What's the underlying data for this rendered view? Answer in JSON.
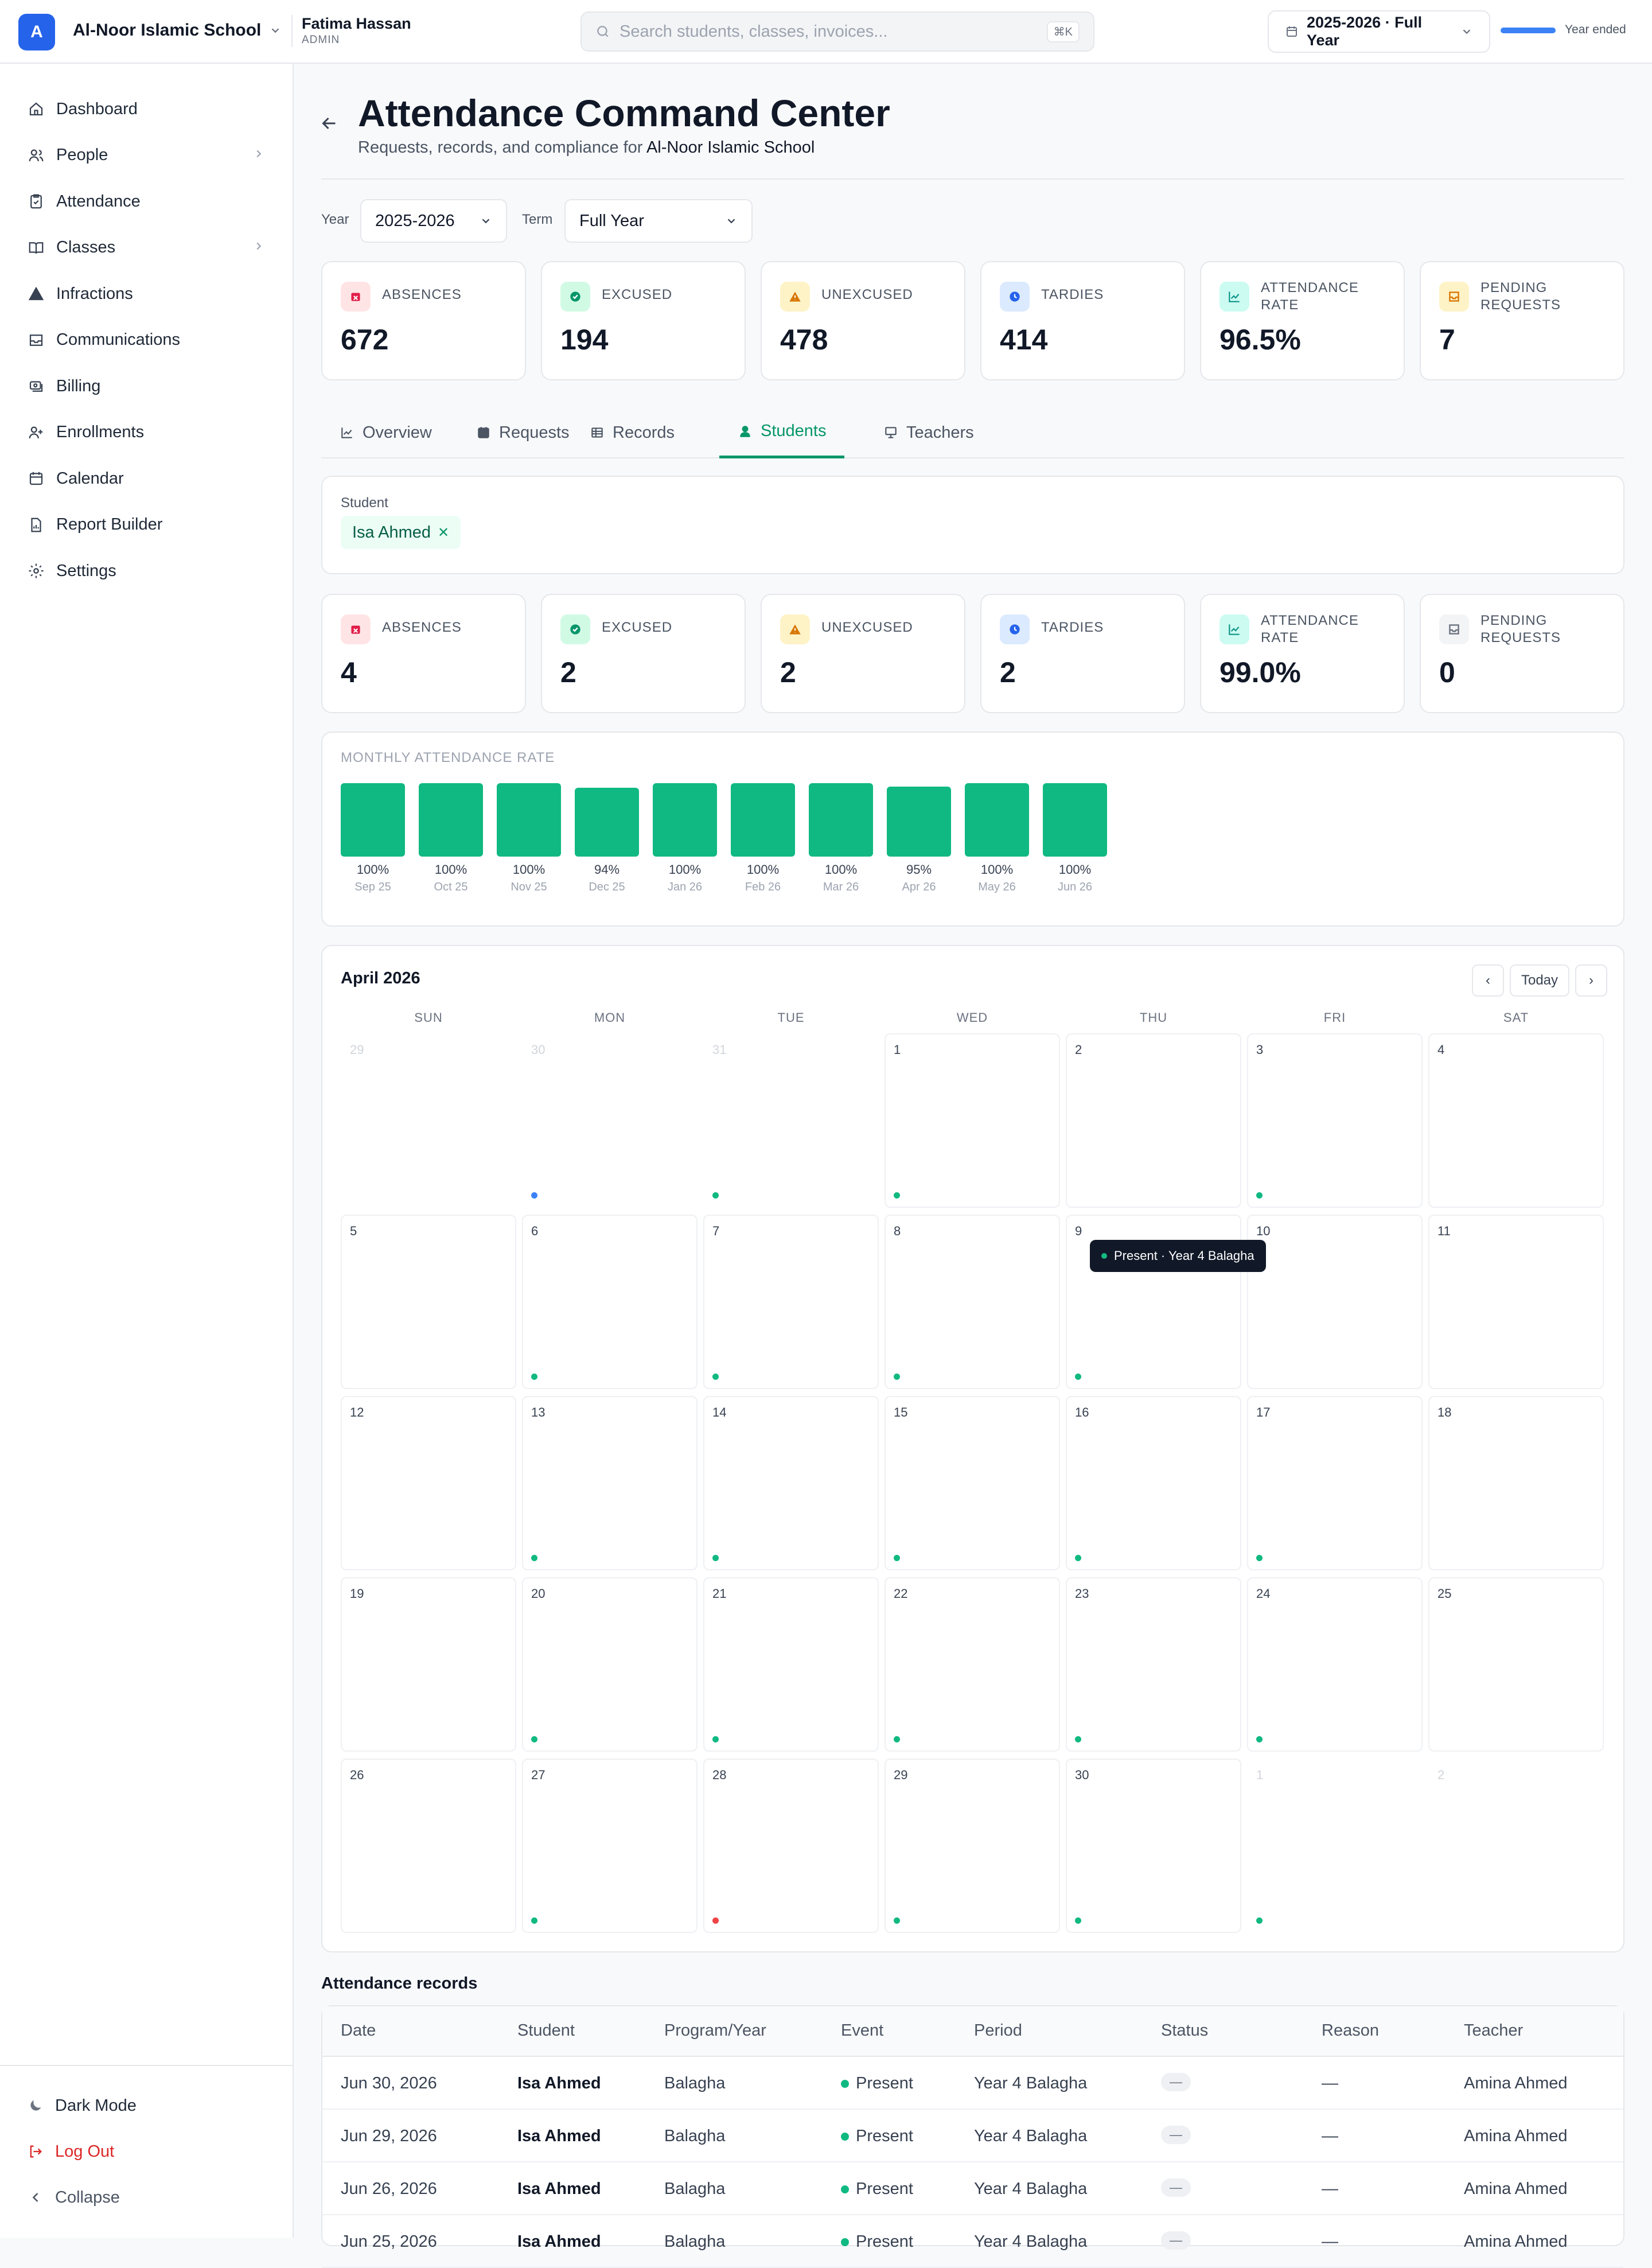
{
  "topbar": {
    "logo_letter": "A",
    "school_name": "Al-Noor Islamic School",
    "user_name": "Fatima Hassan",
    "user_role": "ADMIN",
    "search_placeholder": "Search students, classes, invoices...",
    "search_shortcut": "⌘K",
    "year_selector": "2025-2026 · Full Year",
    "year_status": "Year ended",
    "year_progress_percent": 100
  },
  "sidebar": {
    "items": [
      {
        "label": "Dashboard",
        "icon": "home-icon"
      },
      {
        "label": "People",
        "icon": "users-icon",
        "has_submenu": true
      },
      {
        "label": "Attendance",
        "icon": "clipboard-check-icon"
      },
      {
        "label": "Classes",
        "icon": "book-open-icon",
        "has_submenu": true
      },
      {
        "label": "Infractions",
        "icon": "alert-triangle-icon"
      },
      {
        "label": "Communications",
        "icon": "inbox-icon"
      },
      {
        "label": "Billing",
        "icon": "banknote-icon"
      },
      {
        "label": "Enrollments",
        "icon": "user-plus-icon"
      },
      {
        "label": "Calendar",
        "icon": "calendar-icon"
      },
      {
        "label": "Report Builder",
        "icon": "file-chart-icon"
      },
      {
        "label": "Settings",
        "icon": "gear-icon"
      }
    ],
    "footer": {
      "dark_mode": "Dark Mode",
      "logout": "Log Out",
      "collapse": "Collapse"
    }
  },
  "page": {
    "title": "Attendance Command Center",
    "subtitle_prefix": "Requests, records, and compliance for",
    "subtitle_school": "Al-Noor Islamic School",
    "filters": {
      "year_label": "Year",
      "year_value": "2025-2026",
      "term_label": "Term",
      "term_value": "Full Year"
    }
  },
  "overall_stats": [
    {
      "label": "ABSENCES",
      "value": "672",
      "icon": "calendar-x-icon",
      "color": "#e11d48",
      "bg": "#ffe4e6"
    },
    {
      "label": "EXCUSED",
      "value": "194",
      "icon": "check-circle-icon",
      "color": "#059669",
      "bg": "#d1fae5"
    },
    {
      "label": "UNEXCUSED",
      "value": "478",
      "icon": "warning-icon",
      "color": "#d97706",
      "bg": "#fef3c7"
    },
    {
      "label": "TARDIES",
      "value": "414",
      "icon": "clock-icon",
      "color": "#2563eb",
      "bg": "#dbeafe"
    },
    {
      "label": "ATTENDANCE RATE",
      "value": "96.5%",
      "icon": "trending-icon",
      "color": "#0d9488",
      "bg": "#ccfbf1"
    },
    {
      "label": "PENDING REQUESTS",
      "value": "7",
      "icon": "inbox-icon",
      "color": "#d97706",
      "bg": "#fef3c7"
    }
  ],
  "tabs": [
    {
      "label": "Overview",
      "icon": "line-chart-icon",
      "active": false
    },
    {
      "label": "Requests",
      "icon": "calendar-icon",
      "active": false
    },
    {
      "label": "Records",
      "icon": "table-icon",
      "active": false
    },
    {
      "label": "Students",
      "icon": "student-icon",
      "active": true
    },
    {
      "label": "Teachers",
      "icon": "presentation-icon",
      "active": false
    }
  ],
  "student_filter": {
    "label": "Student",
    "selected": "Isa Ahmed",
    "remove_glyph": "✕"
  },
  "student_stats": [
    {
      "label": "ABSENCES",
      "value": "4",
      "icon": "calendar-x-icon",
      "color": "#e11d48",
      "bg": "#ffe4e6"
    },
    {
      "label": "EXCUSED",
      "value": "2",
      "icon": "check-circle-icon",
      "color": "#059669",
      "bg": "#d1fae5"
    },
    {
      "label": "UNEXCUSED",
      "value": "2",
      "icon": "warning-icon",
      "color": "#d97706",
      "bg": "#fef3c7"
    },
    {
      "label": "TARDIES",
      "value": "2",
      "icon": "clock-icon",
      "color": "#2563eb",
      "bg": "#dbeafe"
    },
    {
      "label": "ATTENDANCE RATE",
      "value": "99.0%",
      "icon": "trending-icon",
      "color": "#0d9488",
      "bg": "#ccfbf1"
    },
    {
      "label": "PENDING REQUESTS",
      "value": "0",
      "icon": "inbox-icon",
      "color": "#6b7280",
      "bg": "#f3f4f6"
    }
  ],
  "chart_data": {
    "type": "bar",
    "title": "MONTHLY ATTENDANCE RATE",
    "categories": [
      "Sep 25",
      "Oct 25",
      "Nov 25",
      "Dec 25",
      "Jan 26",
      "Feb 26",
      "Mar 26",
      "Apr 26",
      "May 26",
      "Jun 26"
    ],
    "values": [
      100,
      100,
      100,
      94,
      100,
      100,
      100,
      95,
      100,
      100
    ],
    "value_labels": [
      "100%",
      "100%",
      "100%",
      "94%",
      "100%",
      "100%",
      "100%",
      "95%",
      "100%",
      "100%"
    ],
    "ylim": [
      0,
      100
    ],
    "color": "#10b981"
  },
  "calendar": {
    "month": "April 2026",
    "today_label": "Today",
    "prev_glyph": "‹",
    "next_glyph": "›",
    "weekdays": [
      "SUN",
      "MON",
      "TUE",
      "WED",
      "THU",
      "FRI",
      "SAT"
    ],
    "days": [
      {
        "d": "29",
        "out": true,
        "dot": null
      },
      {
        "d": "30",
        "out": true,
        "dot": "#3b82f6"
      },
      {
        "d": "31",
        "out": true,
        "dot": "#10b981"
      },
      {
        "d": "1",
        "out": false,
        "dot": "#10b981"
      },
      {
        "d": "2",
        "out": false,
        "dot": null
      },
      {
        "d": "3",
        "out": false,
        "dot": "#10b981"
      },
      {
        "d": "4",
        "out": false,
        "dot": null
      },
      {
        "d": "5",
        "out": false,
        "dot": null
      },
      {
        "d": "6",
        "out": false,
        "dot": "#10b981"
      },
      {
        "d": "7",
        "out": false,
        "dot": "#10b981"
      },
      {
        "d": "8",
        "out": false,
        "dot": "#10b981"
      },
      {
        "d": "9",
        "out": false,
        "dot": "#10b981"
      },
      {
        "d": "10",
        "out": false,
        "dot": null
      },
      {
        "d": "11",
        "out": false,
        "dot": null
      },
      {
        "d": "12",
        "out": false,
        "dot": null
      },
      {
        "d": "13",
        "out": false,
        "dot": "#10b981"
      },
      {
        "d": "14",
        "out": false,
        "dot": "#10b981"
      },
      {
        "d": "15",
        "out": false,
        "dot": "#10b981"
      },
      {
        "d": "16",
        "out": false,
        "dot": "#10b981"
      },
      {
        "d": "17",
        "out": false,
        "dot": "#10b981"
      },
      {
        "d": "18",
        "out": false,
        "dot": null
      },
      {
        "d": "19",
        "out": false,
        "dot": null
      },
      {
        "d": "20",
        "out": false,
        "dot": "#10b981"
      },
      {
        "d": "21",
        "out": false,
        "dot": "#10b981"
      },
      {
        "d": "22",
        "out": false,
        "dot": "#10b981"
      },
      {
        "d": "23",
        "out": false,
        "dot": "#10b981"
      },
      {
        "d": "24",
        "out": false,
        "dot": "#10b981"
      },
      {
        "d": "25",
        "out": false,
        "dot": null
      },
      {
        "d": "26",
        "out": false,
        "dot": null
      },
      {
        "d": "27",
        "out": false,
        "dot": "#10b981"
      },
      {
        "d": "28",
        "out": false,
        "dot": "#ef4444"
      },
      {
        "d": "29",
        "out": false,
        "dot": "#10b981"
      },
      {
        "d": "30",
        "out": false,
        "dot": "#10b981"
      },
      {
        "d": "1",
        "out": true,
        "dot": "#10b981"
      },
      {
        "d": "2",
        "out": true,
        "dot": null
      }
    ],
    "tooltip": "Present · Year 4 Balagha"
  },
  "records": {
    "title": "Attendance records",
    "columns": [
      "Date",
      "Student",
      "Program/Year",
      "Event",
      "Period",
      "Status",
      "Reason",
      "Teacher"
    ],
    "rows": [
      {
        "date": "Jun 30, 2026",
        "student": "Isa Ahmed",
        "program": "Balagha",
        "event": "Present",
        "period": "Year 4 Balagha",
        "status": "—",
        "reason": "—",
        "teacher": "Amina Ahmed"
      },
      {
        "date": "Jun 29, 2026",
        "student": "Isa Ahmed",
        "program": "Balagha",
        "event": "Present",
        "period": "Year 4 Balagha",
        "status": "—",
        "reason": "—",
        "teacher": "Amina Ahmed"
      },
      {
        "date": "Jun 26, 2026",
        "student": "Isa Ahmed",
        "program": "Balagha",
        "event": "Present",
        "period": "Year 4 Balagha",
        "status": "—",
        "reason": "—",
        "teacher": "Amina Ahmed"
      },
      {
        "date": "Jun 25, 2026",
        "student": "Isa Ahmed",
        "program": "Balagha",
        "event": "Present",
        "period": "Year 4 Balagha",
        "status": "—",
        "reason": "—",
        "teacher": "Amina Ahmed"
      }
    ]
  }
}
